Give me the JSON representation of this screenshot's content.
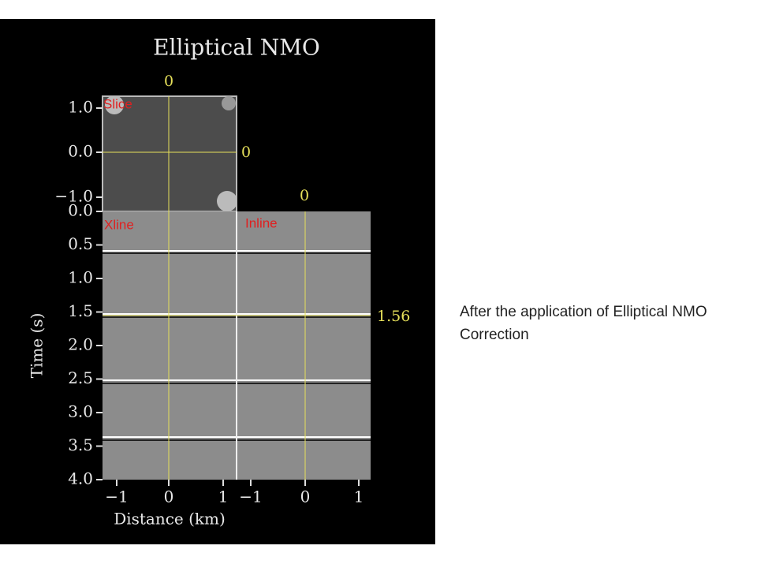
{
  "figure": {
    "title": "Elliptical NMO",
    "panels": {
      "slice": "Slice",
      "xline": "Xline",
      "inline": "Inline"
    },
    "slice_axis_labels": [
      "1.0",
      "0.0",
      "−1.0"
    ],
    "time_axis_labels": [
      "0.0",
      "0.5",
      "1.0",
      "1.5",
      "2.0",
      "2.5",
      "3.0",
      "3.5",
      "4.0"
    ],
    "time_axis_title": "Time (s)",
    "xline_distance_labels": [
      "−1",
      "0",
      "1"
    ],
    "inline_distance_labels": [
      "−1",
      "0",
      "1"
    ],
    "distance_axis_title": "Distance (km)",
    "cursor_labels": {
      "slice_top": "0",
      "slice_right": "0",
      "inline_top": "0",
      "time": "1.56"
    }
  },
  "caption": [
    "After the application of Elliptical NMO",
    "Correction"
  ]
}
